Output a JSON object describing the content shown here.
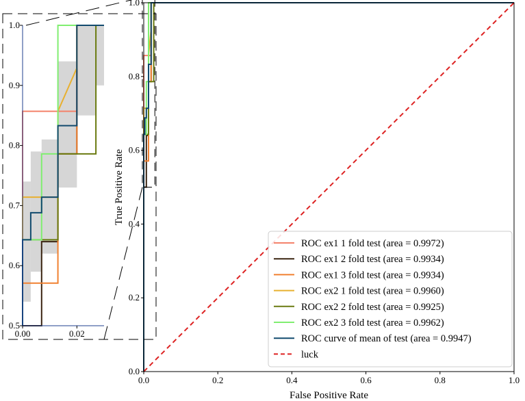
{
  "chart_data": [
    {
      "type": "line",
      "xlabel": "False Positive Rate",
      "ylabel": "True Positive Rate",
      "xlim": [
        0,
        1
      ],
      "ylim": [
        0,
        1
      ],
      "x_ticks": [
        "0.0",
        "0.2",
        "0.4",
        "0.6",
        "0.8",
        "1.0"
      ],
      "y_ticks": [
        "0.0",
        "0.2",
        "0.4",
        "0.6",
        "0.8",
        "1.0"
      ],
      "grid": false,
      "legend_position": "lower-right",
      "series": [
        {
          "name": "ROC ex1 1 fold test (area = 0.9972)",
          "color": "#f4826a",
          "x": [
            0,
            0,
            0.02,
            0.02,
            1
          ],
          "y": [
            0,
            0.857,
            0.857,
            1.0,
            1.0
          ]
        },
        {
          "name": "ROC ex1 2 fold test (area = 0.9934)",
          "color": "#3a2410",
          "x": [
            0,
            0.007,
            0.007,
            0.013,
            0.013,
            0.02,
            0.02,
            0.027,
            0.027,
            1
          ],
          "y": [
            0.5,
            0.5,
            0.64,
            0.64,
            0.786,
            0.786,
            1.0,
            1.0,
            1.0,
            1.0
          ]
        },
        {
          "name": "ROC ex1 3 fold test (area = 0.9934)",
          "color": "#f08030",
          "x": [
            0,
            0,
            0.007,
            0.013,
            0.013,
            0.02,
            0.02,
            1
          ],
          "y": [
            0,
            0.571,
            0.571,
            0.571,
            0.786,
            0.786,
            1.0,
            1.0
          ]
        },
        {
          "name": "ROC ex2 1 fold test (area = 0.9960)",
          "color": "#e8b030",
          "x": [
            0,
            0,
            0.007,
            0.013,
            0.013,
            0.02,
            0.02,
            1
          ],
          "y": [
            0,
            0.714,
            0.714,
            0.714,
            0.857,
            0.929,
            1.0,
            1.0
          ]
        },
        {
          "name": "ROC ex2 2 fold test (area = 0.9925)",
          "color": "#6a7a10",
          "x": [
            0,
            0,
            0.007,
            0.013,
            0.013,
            0.027,
            0.027,
            1
          ],
          "y": [
            0,
            0.643,
            0.643,
            0.643,
            0.786,
            0.786,
            1.0,
            1.0
          ]
        },
        {
          "name": "ROC ex2 3 fold test (area = 0.9962)",
          "color": "#80ee70",
          "x": [
            0,
            0,
            0.007,
            0.007,
            0.013,
            0.013,
            1
          ],
          "y": [
            0,
            0.643,
            0.643,
            0.786,
            0.786,
            1.0,
            1.0
          ]
        },
        {
          "name": "ROC curve of mean of test (area = 0.9947)",
          "color": "#114a6e",
          "x": [
            0,
            0,
            0.003,
            0.003,
            0.007,
            0.007,
            0.013,
            0.013,
            0.02,
            0.02,
            1
          ],
          "y": [
            0,
            0.643,
            0.643,
            0.688,
            0.688,
            0.714,
            0.714,
            0.833,
            0.833,
            1.0,
            1.0
          ]
        },
        {
          "name": "luck",
          "color": "#dd2222",
          "dashed": true,
          "x": [
            0,
            1
          ],
          "y": [
            0,
            1
          ]
        }
      ],
      "inset": {
        "xlim": [
          0,
          0.03
        ],
        "ylim": [
          0.5,
          1.0
        ],
        "x_ticks": [
          "0.00",
          "0.02"
        ],
        "y_ticks": [
          "0.5",
          "0.6",
          "0.7",
          "0.8",
          "0.9",
          "1.0"
        ],
        "band": [
          {
            "x0": 0,
            "x1": 0.003,
            "y0": 0.54,
            "y1": 0.74
          },
          {
            "x0": 0.003,
            "x1": 0.007,
            "y0": 0.59,
            "y1": 0.79
          },
          {
            "x0": 0.007,
            "x1": 0.013,
            "y0": 0.62,
            "y1": 0.81
          },
          {
            "x0": 0.013,
            "x1": 0.02,
            "y0": 0.73,
            "y1": 0.94
          },
          {
            "x0": 0.02,
            "x1": 0.027,
            "y0": 0.85,
            "y1": 1.0
          },
          {
            "x0": 0.027,
            "x1": 0.03,
            "y0": 0.9,
            "y1": 1.0
          }
        ]
      }
    }
  ]
}
